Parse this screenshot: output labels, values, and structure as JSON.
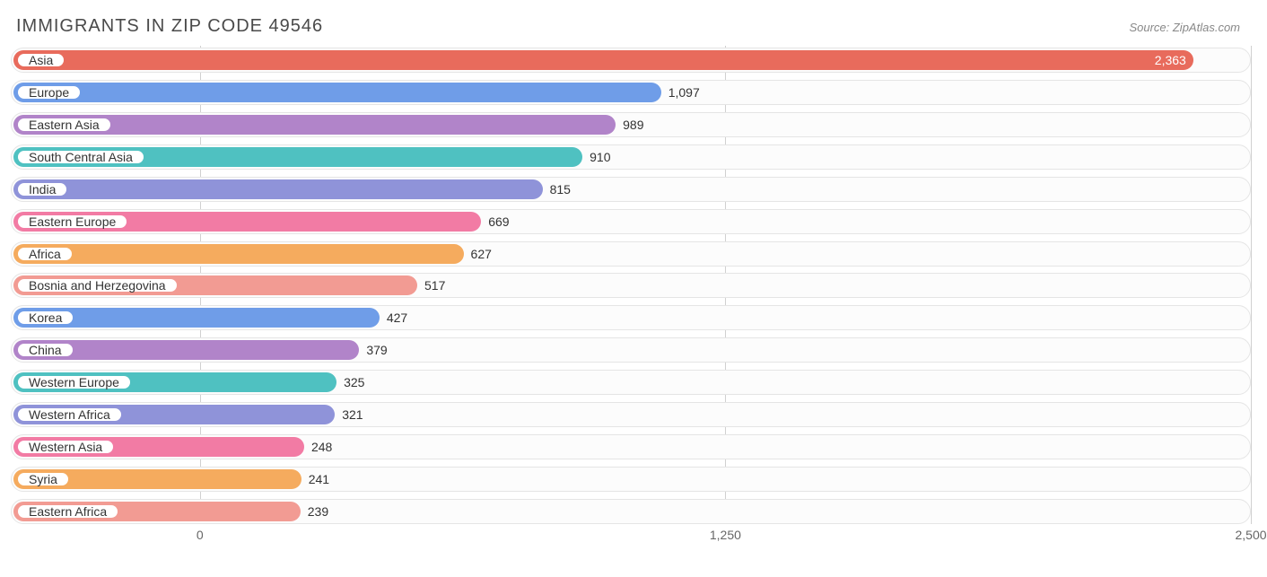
{
  "title": "IMMIGRANTS IN ZIP CODE 49546",
  "source": "Source: ZipAtlas.com",
  "chart": {
    "type": "bar-horizontal",
    "x_min": -450,
    "x_max": 2500,
    "ticks": [
      0,
      1250,
      2500
    ],
    "tick_labels": [
      "0",
      "1,250",
      "2,500"
    ],
    "track_border_color": "#e5e5e5",
    "track_bg": "#fcfcfc",
    "grid_color": "#d0d0d0",
    "label_fontsize": 14,
    "title_fontsize": 20,
    "title_color": "#4a4a4a",
    "source_fontsize": 13,
    "source_color": "#888888",
    "series": [
      {
        "label": "Asia",
        "value": 2363,
        "value_label": "2,363",
        "color": "#e86b5c",
        "value_inside": true
      },
      {
        "label": "Europe",
        "value": 1097,
        "value_label": "1,097",
        "color": "#6f9de8",
        "value_inside": false
      },
      {
        "label": "Eastern Asia",
        "value": 989,
        "value_label": "989",
        "color": "#b184c9",
        "value_inside": false
      },
      {
        "label": "South Central Asia",
        "value": 910,
        "value_label": "910",
        "color": "#4fc1c1",
        "value_inside": false
      },
      {
        "label": "India",
        "value": 815,
        "value_label": "815",
        "color": "#8f93d9",
        "value_inside": false
      },
      {
        "label": "Eastern Europe",
        "value": 669,
        "value_label": "669",
        "color": "#f27ba4",
        "value_inside": false
      },
      {
        "label": "Africa",
        "value": 627,
        "value_label": "627",
        "color": "#f5ab5e",
        "value_inside": false
      },
      {
        "label": "Bosnia and Herzegovina",
        "value": 517,
        "value_label": "517",
        "color": "#f29b93",
        "value_inside": false
      },
      {
        "label": "Korea",
        "value": 427,
        "value_label": "427",
        "color": "#6f9de8",
        "value_inside": false
      },
      {
        "label": "China",
        "value": 379,
        "value_label": "379",
        "color": "#b184c9",
        "value_inside": false
      },
      {
        "label": "Western Europe",
        "value": 325,
        "value_label": "325",
        "color": "#4fc1c1",
        "value_inside": false
      },
      {
        "label": "Western Africa",
        "value": 321,
        "value_label": "321",
        "color": "#8f93d9",
        "value_inside": false
      },
      {
        "label": "Western Asia",
        "value": 248,
        "value_label": "248",
        "color": "#f27ba4",
        "value_inside": false
      },
      {
        "label": "Syria",
        "value": 241,
        "value_label": "241",
        "color": "#f5ab5e",
        "value_inside": false
      },
      {
        "label": "Eastern Africa",
        "value": 239,
        "value_label": "239",
        "color": "#f29b93",
        "value_inside": false
      }
    ]
  }
}
